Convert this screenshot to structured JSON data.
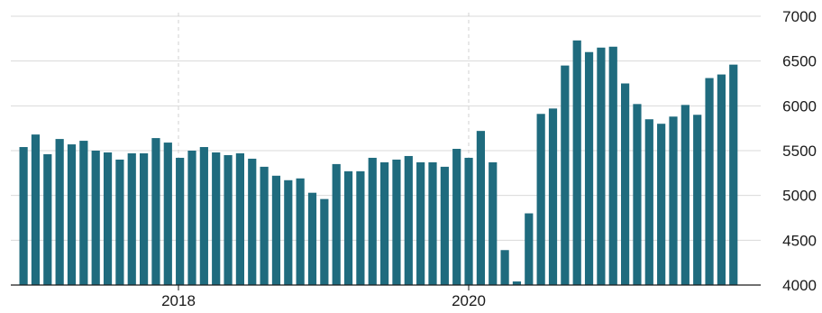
{
  "chart_data": {
    "type": "bar",
    "title": "",
    "xlabel": "",
    "ylabel": "",
    "ylim": [
      4000,
      7000
    ],
    "y_ticks": [
      4000,
      4500,
      5000,
      5500,
      6000,
      6500,
      7000
    ],
    "y_axis_position": "right",
    "x_tick_labels": [
      "2018",
      "2020"
    ],
    "grid": true,
    "bar_color": "#1f6b7e",
    "grid_color": "#d9d9d9",
    "values": [
      5540,
      5680,
      5460,
      5630,
      5570,
      5610,
      5500,
      5480,
      5400,
      5470,
      5470,
      5640,
      5590,
      5420,
      5500,
      5540,
      5480,
      5450,
      5470,
      5410,
      5320,
      5220,
      5170,
      5190,
      5030,
      4960,
      5350,
      5270,
      5270,
      5420,
      5370,
      5400,
      5440,
      5370,
      5370,
      5320,
      5520,
      5420,
      5720,
      5370,
      4390,
      4040,
      4800,
      5910,
      5970,
      6450,
      6730,
      6600,
      6650,
      6660,
      6250,
      6020,
      5850,
      5800,
      5880,
      6010,
      5900,
      6310,
      6350,
      6460
    ]
  }
}
